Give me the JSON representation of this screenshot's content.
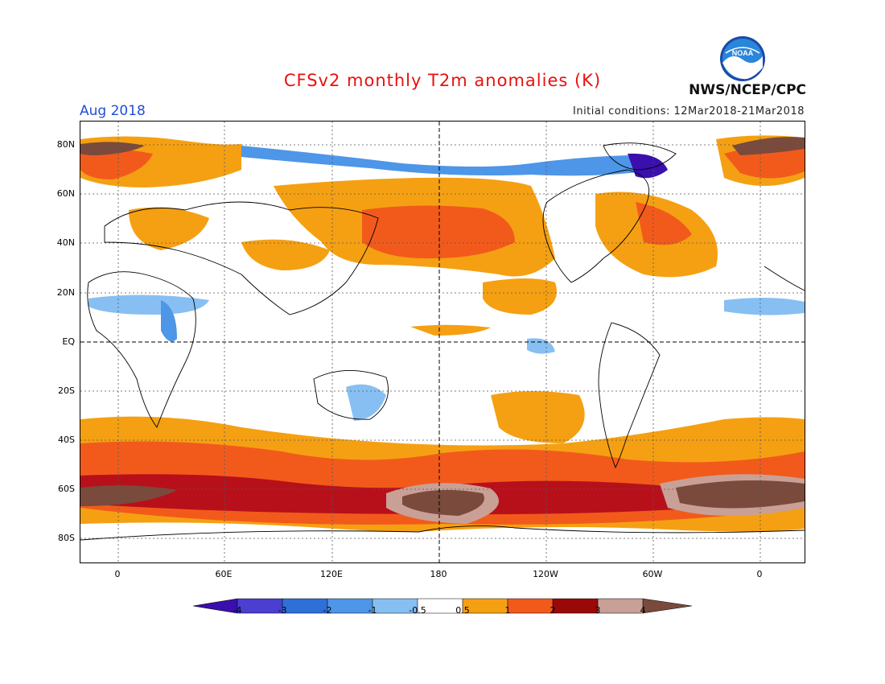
{
  "header": {
    "title": "CFSv2 monthly T2m anomalies (K)",
    "target_month": "Aug 2018",
    "initial_conditions": "Initial conditions: 12Mar2018-21Mar2018",
    "agency": "NWS/NCEP/CPC",
    "logo_text": "NOAA"
  },
  "axes": {
    "lat_labels": [
      "80N",
      "60N",
      "40N",
      "20N",
      "EQ",
      "20S",
      "40S",
      "60S",
      "80S"
    ],
    "lon_labels": [
      "0",
      "60E",
      "120E",
      "180",
      "120W",
      "60W",
      "0"
    ]
  },
  "colorbar": {
    "ticks": [
      "-4",
      "-3",
      "-2",
      "-1",
      "-0.5",
      "0.5",
      "1",
      "2",
      "3",
      "4"
    ],
    "colors": [
      "#3b0fae",
      "#4a3fd1",
      "#2f6fd8",
      "#4d96e8",
      "#88bff2",
      "#ffffff",
      "#f5a012",
      "#f25a1c",
      "#c8141a",
      "#9a0808",
      "#c9a096",
      "#7a4a3c"
    ]
  },
  "colors": {
    "title": "#e8110f",
    "month": "#1f4fd6",
    "warm1": "#f5a012",
    "warm2": "#f25a1c",
    "warm3": "#b8101a",
    "warm4": "#c9a096",
    "warm5": "#7a4a3c",
    "cool1": "#88bff2",
    "cool2": "#4d96e8",
    "cool3": "#2f6fd8",
    "cool4": "#3b0fae"
  }
}
